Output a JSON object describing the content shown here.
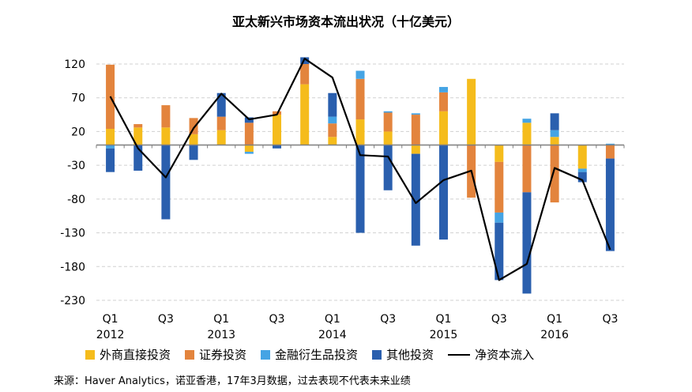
{
  "chart_data": {
    "type": "bar",
    "title": "亚太新兴市场资本流出状况（十亿美元）",
    "ylim": [
      -250,
      135
    ],
    "yticks": [
      120,
      70,
      20,
      -30,
      -80,
      -130,
      -180,
      -230
    ],
    "grid": true,
    "legend_position": "bottom",
    "x_tick_labels": [
      {
        "q": "Q1",
        "year": "2012",
        "index": 0
      },
      {
        "q": "Q3",
        "year": "",
        "index": 2
      },
      {
        "q": "Q1",
        "year": "2013",
        "index": 4
      },
      {
        "q": "Q3",
        "year": "",
        "index": 6
      },
      {
        "q": "Q1",
        "year": "2014",
        "index": 8
      },
      {
        "q": "Q3",
        "year": "",
        "index": 10
      },
      {
        "q": "Q1",
        "year": "2015",
        "index": 12
      },
      {
        "q": "Q3",
        "year": "",
        "index": 14
      },
      {
        "q": "Q1",
        "year": "2016",
        "index": 16
      },
      {
        "q": "Q3",
        "year": "",
        "index": 18
      }
    ],
    "categories": [
      "2012Q1",
      "2012Q2",
      "2012Q3",
      "2012Q4",
      "2013Q1",
      "2013Q2",
      "2013Q3",
      "2013Q4",
      "2014Q1",
      "2014Q2",
      "2014Q3",
      "2014Q4",
      "2015Q1",
      "2015Q2",
      "2015Q3",
      "2015Q4",
      "2016Q1",
      "2016Q2",
      "2016Q3"
    ],
    "series": [
      {
        "name": "外商直接投资",
        "color": "#F5BC1C",
        "kind": "bar",
        "values": [
          24,
          26,
          26,
          16,
          22,
          -10,
          45,
          90,
          12,
          38,
          20,
          -13,
          50,
          98,
          -25,
          33,
          12,
          -35,
          0
        ]
      },
      {
        "name": "证券投资",
        "color": "#E3843D",
        "kind": "bar",
        "values": [
          95,
          5,
          33,
          24,
          20,
          33,
          5,
          30,
          20,
          60,
          28,
          45,
          28,
          -78,
          -75,
          -70,
          -85,
          0,
          -20
        ]
      },
      {
        "name": "金融衍生品投资",
        "color": "#45A4E4",
        "kind": "bar",
        "values": [
          -5,
          0,
          0,
          0,
          0,
          -3,
          0,
          0,
          10,
          12,
          2,
          2,
          8,
          0,
          -15,
          6,
          10,
          -5,
          2
        ]
      },
      {
        "name": "其他投资",
        "color": "#2A5FAE",
        "kind": "bar",
        "values": [
          -35,
          -38,
          -110,
          -22,
          35,
          8,
          -5,
          10,
          35,
          -130,
          -67,
          -136,
          -140,
          0,
          -85,
          -150,
          25,
          -15,
          -137
        ]
      },
      {
        "name": "净资本流入",
        "color": "#000000",
        "kind": "line",
        "values": [
          72,
          -5,
          -48,
          25,
          76,
          38,
          45,
          128,
          100,
          -15,
          -17,
          -86,
          -52,
          -38,
          -200,
          -176,
          -34,
          -52,
          -155
        ]
      }
    ],
    "source_note": "来源：Haver Analytics，诺亚香港，17年3月数据，过去表现不代表未来业绩"
  }
}
